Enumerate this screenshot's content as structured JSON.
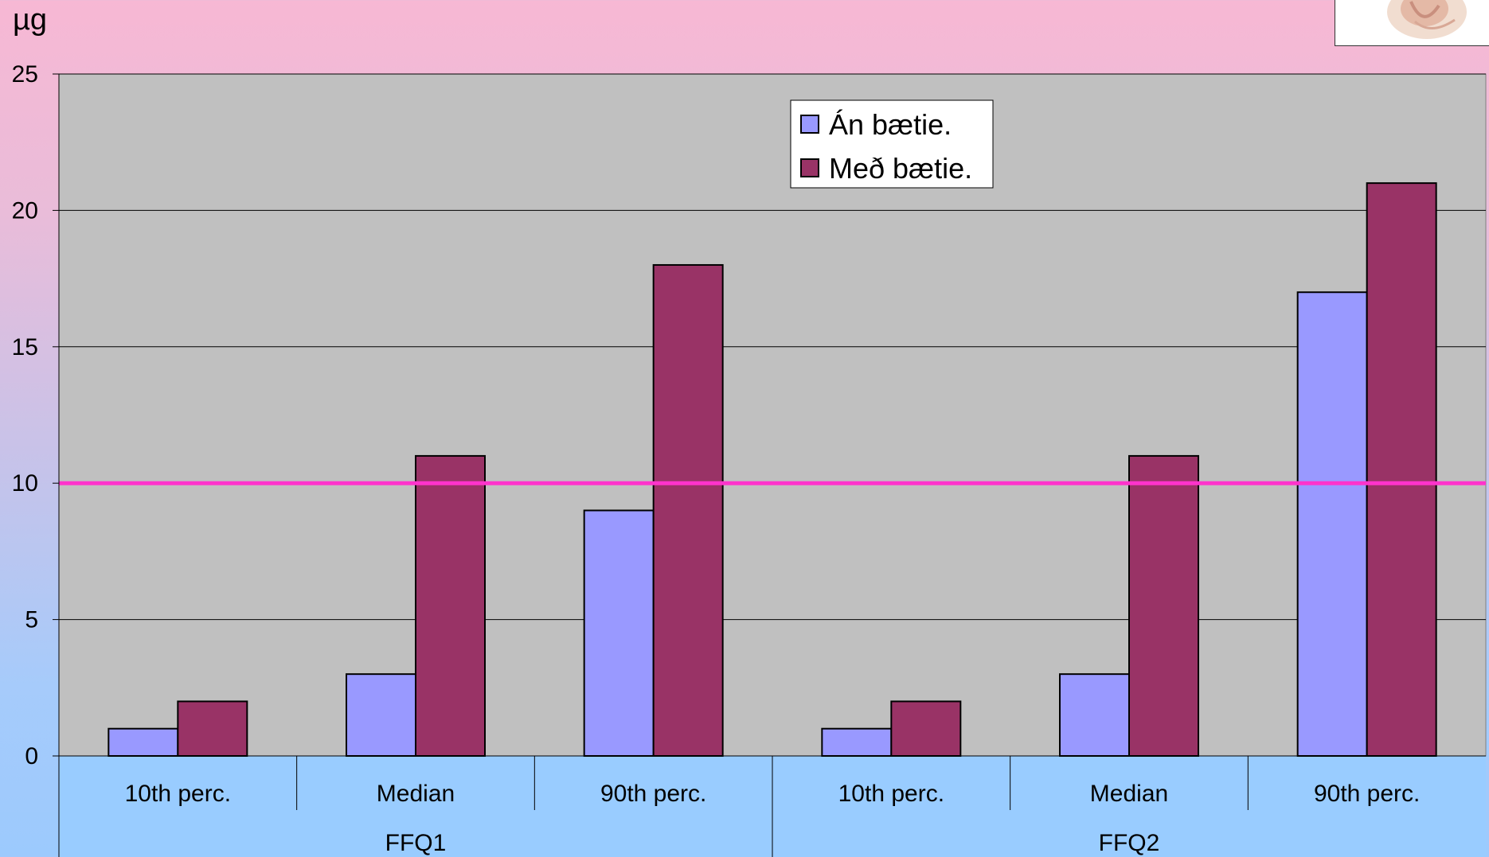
{
  "chart_data": {
    "type": "bar",
    "ylabel": "µg",
    "ylim": [
      0,
      25
    ],
    "yticks": [
      0,
      5,
      10,
      15,
      20,
      25
    ],
    "groups": [
      {
        "label": "FFQ1",
        "categories": [
          "10th perc.",
          "Median",
          "90th perc."
        ]
      },
      {
        "label": "FFQ2",
        "categories": [
          "10th perc.",
          "Median",
          "90th perc."
        ]
      }
    ],
    "categories": [
      "10th perc.",
      "Median",
      "90th perc.",
      "10th perc.",
      "Median",
      "90th perc."
    ],
    "series": [
      {
        "name": "Án bætie.",
        "color": "#9999ff",
        "values": [
          1,
          3,
          9,
          1,
          3,
          17
        ]
      },
      {
        "name": "Með bætie.",
        "color": "#993366",
        "values": [
          2,
          11,
          18,
          2,
          11,
          21
        ]
      }
    ],
    "reference_line": {
      "value": 10,
      "color": "#ff33cc"
    },
    "legend_position": "top-center",
    "grid": true,
    "plot_background": "#c0c0c0",
    "axis_band_color": "#99ccff"
  }
}
